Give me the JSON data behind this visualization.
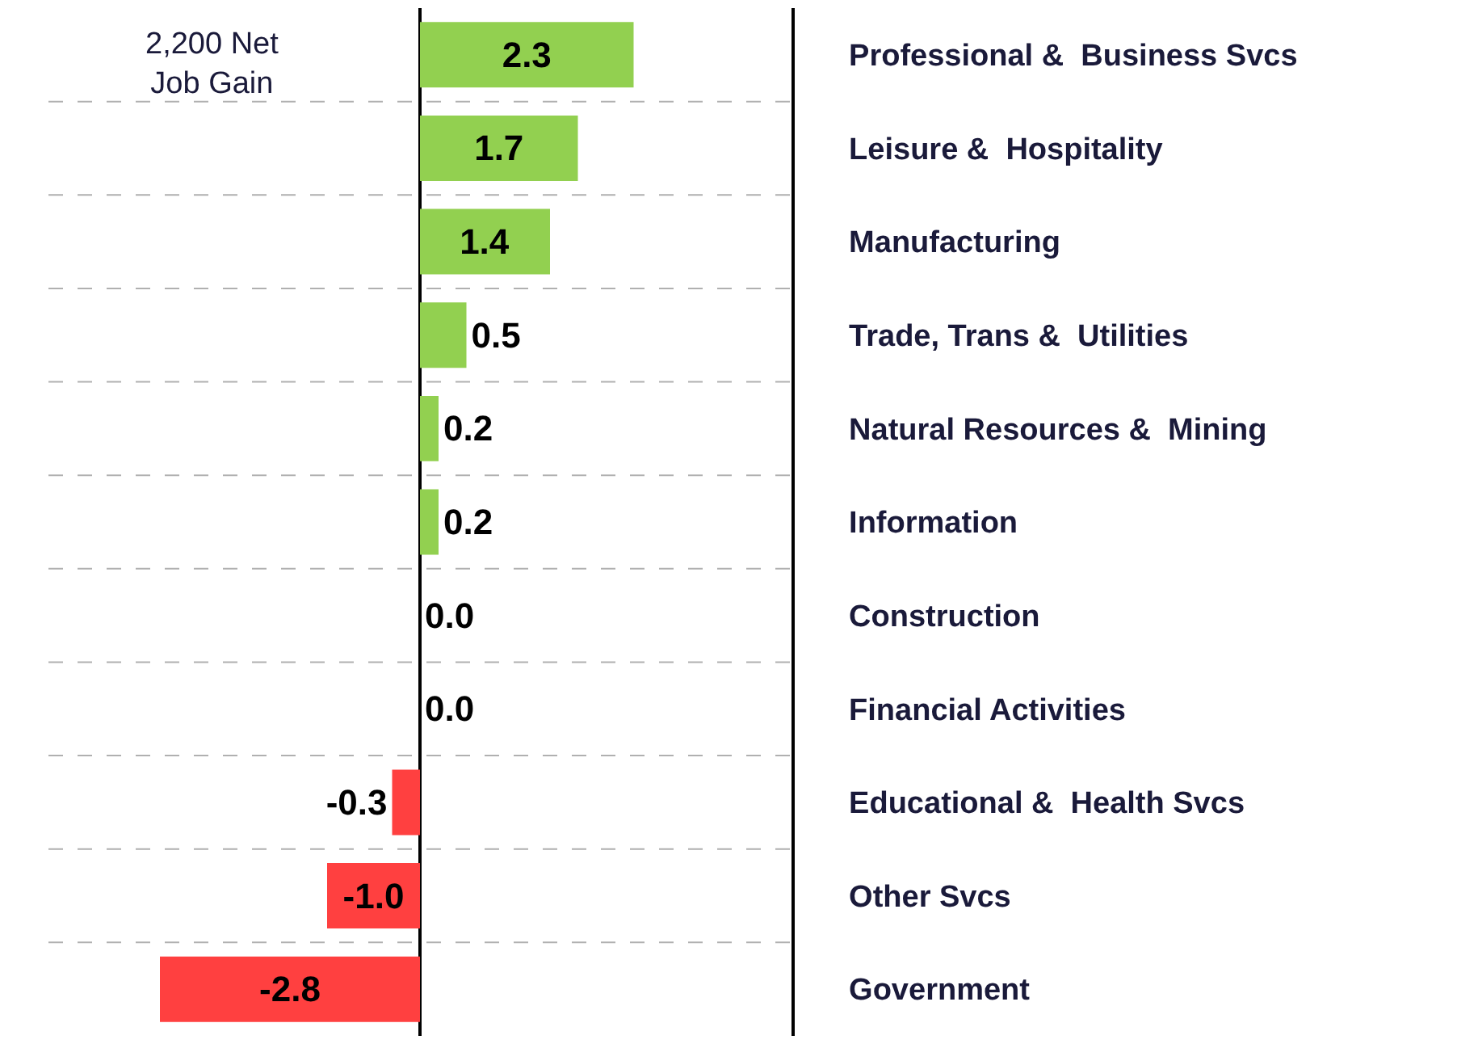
{
  "chart_data": {
    "type": "bar",
    "orientation": "horizontal",
    "categories": [
      "Professional &  Business Svcs",
      "Leisure &  Hospitality",
      "Manufacturing",
      "Trade, Trans &  Utilities",
      "Natural Resources &  Mining",
      "Information",
      "Construction",
      "Financial Activities",
      "Educational &  Health Svcs",
      "Other Svcs",
      "Government"
    ],
    "values": [
      2.3,
      1.7,
      1.4,
      0.5,
      0.2,
      0.2,
      0.0,
      0.0,
      -0.3,
      -1.0,
      -2.8
    ],
    "colors": [
      "#92d050",
      "#92d050",
      "#92d050",
      "#92d050",
      "#92d050",
      "#92d050",
      "#92d050",
      "#92d050",
      "#ff4040",
      "#ff4040",
      "#ff4040"
    ],
    "xlim": [
      -4.0,
      4.0
    ],
    "value_labels": [
      "2.3",
      "1.7",
      "1.4",
      "0.5",
      "0.2",
      "0.2",
      "0.0",
      "0.0",
      "-0.3",
      "-1.0",
      "-2.8"
    ],
    "tick_labels": "y",
    "grid": "y",
    "annotations": [
      "2,200 Net\nJob Gain"
    ]
  }
}
